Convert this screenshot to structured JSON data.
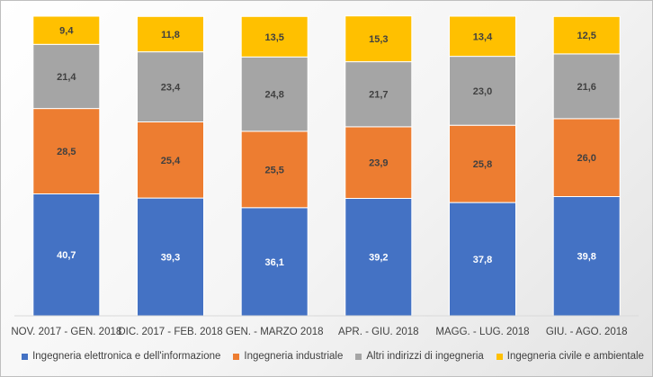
{
  "chart_data": {
    "type": "bar",
    "stacked": true,
    "categories": [
      "NOV. 2017 - GEN. 2018",
      "DIC. 2017 - FEB. 2018",
      "GEN. - MARZO 2018",
      "APR. - GIU. 2018",
      "MAGG. - LUG. 2018",
      "GIU. - AGO. 2018"
    ],
    "series": [
      {
        "name": "Ingegneria elettronica e dell'informazione",
        "color": "#4472c4",
        "values": [
          40.7,
          39.3,
          36.1,
          39.2,
          37.8,
          39.8
        ],
        "labels": [
          "40,7",
          "39,3",
          "36,1",
          "39,2",
          "37,8",
          "39,8"
        ]
      },
      {
        "name": "Ingegneria industriale",
        "color": "#ed7d31",
        "values": [
          28.5,
          25.4,
          25.5,
          23.9,
          25.8,
          26.0
        ],
        "labels": [
          "28,5",
          "25,4",
          "25,5",
          "23,9",
          "25,8",
          "26,0"
        ]
      },
      {
        "name": "Altri indirizzi di ingegneria",
        "color": "#a5a5a5",
        "values": [
          21.4,
          23.4,
          24.8,
          21.7,
          23.0,
          21.6
        ],
        "labels": [
          "21,4",
          "23,4",
          "24,8",
          "21,7",
          "23,0",
          "21,6"
        ]
      },
      {
        "name": "Ingegneria civile e ambientale",
        "color": "#ffc000",
        "values": [
          9.4,
          11.8,
          13.5,
          15.3,
          13.4,
          12.5
        ],
        "labels": [
          "9,4",
          "11,8",
          "13,5",
          "15,3",
          "13,4",
          "12,5"
        ]
      }
    ],
    "ylim": [
      0,
      100
    ],
    "grid": false,
    "legend_position": "bottom",
    "title": "",
    "xlabel": "",
    "ylabel": ""
  }
}
